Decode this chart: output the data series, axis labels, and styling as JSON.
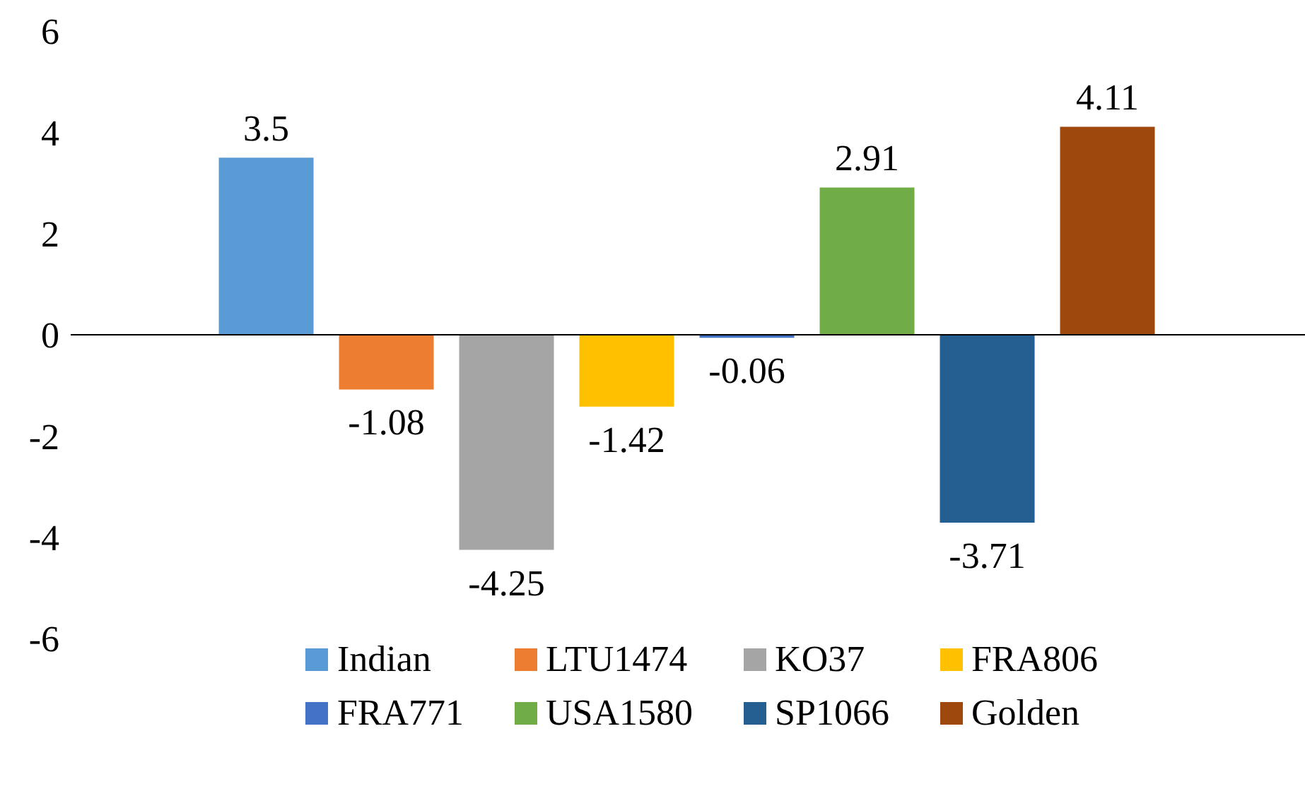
{
  "chart_data": {
    "type": "bar",
    "categories": [
      null
    ],
    "series": [
      {
        "name": "Indian",
        "color": "#5b9bd5",
        "values": [
          3.5
        ]
      },
      {
        "name": "LTU1474",
        "color": "#ed7d31",
        "values": [
          -1.08
        ]
      },
      {
        "name": "KO37",
        "color": "#a5a5a5",
        "values": [
          -4.25
        ]
      },
      {
        "name": "FRA806",
        "color": "#ffc000",
        "values": [
          -1.42
        ]
      },
      {
        "name": "FRA771",
        "color": "#4472c4",
        "values": [
          -0.06
        ]
      },
      {
        "name": "USA1580",
        "color": "#70ad47",
        "values": [
          2.91
        ]
      },
      {
        "name": "SP1066",
        "color": "#255e91",
        "values": [
          -3.71
        ]
      },
      {
        "name": "Golden",
        "color": "#9e480e",
        "values": [
          4.11
        ]
      }
    ],
    "ylim": [
      -6,
      6
    ],
    "yticks": [
      -6,
      -4,
      -2,
      0,
      2,
      4,
      6
    ],
    "ref_lines": [
      {
        "axis": "y",
        "value": 0,
        "color": "#000000"
      }
    ],
    "legend": "bottom",
    "data_labels": true
  }
}
